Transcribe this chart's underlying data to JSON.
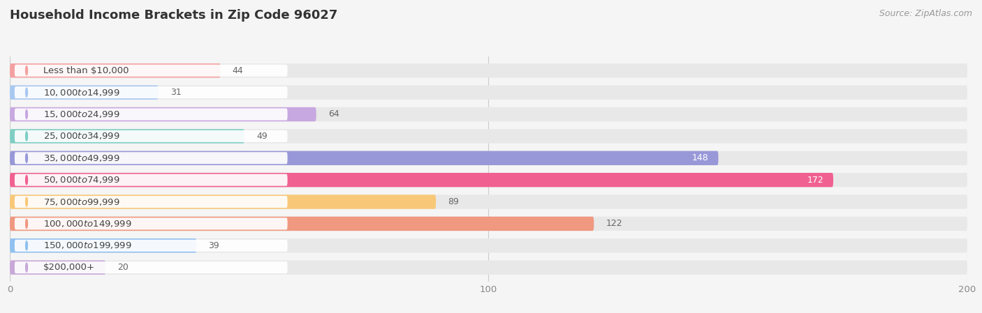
{
  "title": "Household Income Brackets in Zip Code 96027",
  "source": "Source: ZipAtlas.com",
  "categories": [
    "Less than $10,000",
    "$10,000 to $14,999",
    "$15,000 to $24,999",
    "$25,000 to $34,999",
    "$35,000 to $49,999",
    "$50,000 to $74,999",
    "$75,000 to $99,999",
    "$100,000 to $149,999",
    "$150,000 to $199,999",
    "$200,000+"
  ],
  "values": [
    44,
    31,
    64,
    49,
    148,
    172,
    89,
    122,
    39,
    20
  ],
  "bar_colors": [
    "#F4A0A0",
    "#A8C8F0",
    "#C8A8E0",
    "#7ECEC4",
    "#9898D8",
    "#F06090",
    "#F8C878",
    "#F09880",
    "#90C0F0",
    "#C8A8D8"
  ],
  "bg_color": "#f5f5f5",
  "bar_bg_color": "#e8e8e8",
  "label_bg_color": "#ffffff",
  "xlim": [
    0,
    200
  ],
  "xticks": [
    0,
    100,
    200
  ],
  "title_fontsize": 13,
  "label_fontsize": 9.5,
  "value_fontsize": 9,
  "source_fontsize": 9
}
